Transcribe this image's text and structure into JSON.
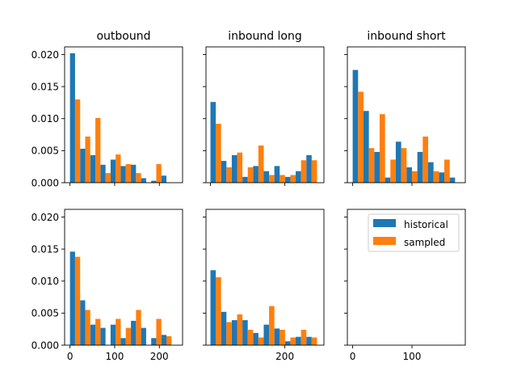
{
  "colors": {
    "historical": "#1f77b4",
    "sampled": "#ff7f0e"
  },
  "legend": {
    "placement": "upper right, bottom-right panel",
    "entries": [
      "historical",
      "sampled"
    ]
  },
  "chart_data": [
    {
      "type": "bar",
      "title": "outbound",
      "xlim": [
        -12,
        252
      ],
      "ylim": [
        0,
        0.0212
      ],
      "xticks": [
        0,
        100,
        200
      ],
      "xtick_labels_shown": false,
      "yticks": [
        0.0,
        0.005,
        0.01,
        0.015,
        0.02
      ],
      "ytick_labels": [
        "0.000",
        "0.005",
        "0.010",
        "0.015",
        "0.020"
      ],
      "ytick_labels_shown": true,
      "bin_starts": [
        0,
        22.7,
        45.5,
        68.2,
        90.9,
        113.6,
        136.4,
        159.1,
        181.8,
        204.5
      ],
      "bin_width": 22.7,
      "series": [
        {
          "name": "historical",
          "values": [
            0.0202,
            0.0053,
            0.0043,
            0.0028,
            0.0036,
            0.0026,
            0.0028,
            0.0007,
            0.0003,
            0.0011
          ]
        },
        {
          "name": "sampled",
          "values": [
            0.013,
            0.0072,
            0.0101,
            0.0015,
            0.0044,
            0.0029,
            0.0015,
            0.0,
            0.0029,
            0.0
          ]
        }
      ]
    },
    {
      "type": "bar",
      "title": "inbound long",
      "xlim": [
        -12,
        305
      ],
      "ylim": [
        0,
        0.0212
      ],
      "xticks": [
        0,
        200
      ],
      "xtick_labels_shown": false,
      "yticks": [
        0.0,
        0.005,
        0.01,
        0.015,
        0.02
      ],
      "ytick_labels_shown": false,
      "bin_starts": [
        0,
        28.6,
        57.3,
        85.9,
        114.6,
        143.2,
        171.8,
        200.5,
        229.1,
        257.7
      ],
      "bin_width": 28.6,
      "series": [
        {
          "name": "historical",
          "values": [
            0.0126,
            0.0034,
            0.0043,
            0.0009,
            0.0026,
            0.0018,
            0.0026,
            0.0009,
            0.0018,
            0.0043
          ]
        },
        {
          "name": "sampled",
          "values": [
            0.0092,
            0.0024,
            0.0047,
            0.0024,
            0.0058,
            0.0012,
            0.0012,
            0.0012,
            0.0035,
            0.0035
          ]
        }
      ]
    },
    {
      "type": "bar",
      "title": "inbound short",
      "xlim": [
        -9,
        190
      ],
      "ylim": [
        0,
        0.0212
      ],
      "xticks": [
        0,
        100
      ],
      "xtick_labels_shown": false,
      "yticks": [
        0.0,
        0.005,
        0.01,
        0.015,
        0.02
      ],
      "ytick_labels_shown": false,
      "bin_starts": [
        0,
        18.2,
        36.4,
        54.5,
        72.7,
        90.9,
        109.1,
        127.3,
        145.5,
        163.6
      ],
      "bin_width": 18.2,
      "series": [
        {
          "name": "historical",
          "values": [
            0.0176,
            0.0112,
            0.0048,
            0.0008,
            0.0064,
            0.0024,
            0.0048,
            0.0032,
            0.0016,
            0.0008
          ]
        },
        {
          "name": "sampled",
          "values": [
            0.0142,
            0.0054,
            0.0107,
            0.0036,
            0.0054,
            0.0018,
            0.0072,
            0.0018,
            0.0036,
            0.0
          ]
        }
      ]
    },
    {
      "type": "bar",
      "title": "",
      "xlim": [
        -12,
        252
      ],
      "ylim": [
        0,
        0.0212
      ],
      "xticks": [
        0,
        100,
        200
      ],
      "xtick_labels": [
        "0",
        "100",
        "200"
      ],
      "xtick_labels_shown": true,
      "yticks": [
        0.0,
        0.005,
        0.01,
        0.015,
        0.02
      ],
      "ytick_labels": [
        "0.000",
        "0.005",
        "0.010",
        "0.015",
        "0.020"
      ],
      "ytick_labels_shown": true,
      "bin_starts": [
        0,
        22.7,
        45.5,
        68.2,
        90.9,
        113.6,
        136.4,
        159.1,
        181.8,
        204.5
      ],
      "bin_width": 22.7,
      "series": [
        {
          "name": "historical",
          "values": [
            0.0146,
            0.007,
            0.0032,
            0.0027,
            0.0032,
            0.0011,
            0.0038,
            0.0027,
            0.0011,
            0.0016
          ]
        },
        {
          "name": "sampled",
          "values": [
            0.0138,
            0.0055,
            0.0041,
            0.0,
            0.0041,
            0.0027,
            0.0055,
            0.0,
            0.0041,
            0.0014
          ]
        }
      ]
    },
    {
      "type": "bar",
      "title": "",
      "xlim": [
        -12,
        305
      ],
      "ylim": [
        0,
        0.0212
      ],
      "xticks": [
        200
      ],
      "xtick_labels": [
        "200"
      ],
      "xtick_labels_shown": true,
      "yticks": [
        0.0,
        0.005,
        0.01,
        0.015,
        0.02
      ],
      "ytick_labels_shown": false,
      "bin_starts": [
        0,
        28.6,
        57.3,
        85.9,
        114.6,
        143.2,
        171.8,
        200.5,
        229.1,
        257.7
      ],
      "bin_width": 28.6,
      "series": [
        {
          "name": "historical",
          "values": [
            0.0117,
            0.0052,
            0.0039,
            0.0039,
            0.0019,
            0.0032,
            0.0026,
            0.0006,
            0.0013,
            0.0013
          ]
        },
        {
          "name": "sampled",
          "values": [
            0.0106,
            0.0036,
            0.0048,
            0.0024,
            0.0012,
            0.0061,
            0.0024,
            0.0012,
            0.0024,
            0.0012
          ]
        }
      ]
    },
    {
      "type": "bar",
      "title": "",
      "xlim": [
        -9,
        190
      ],
      "ylim": [
        0,
        0.0212
      ],
      "xticks": [
        0,
        100
      ],
      "xtick_labels": [
        "0",
        "100"
      ],
      "xtick_labels_shown": true,
      "yticks": [
        0.0,
        0.005,
        0.01,
        0.015,
        0.02
      ],
      "ytick_labels_shown": false,
      "bin_starts": [],
      "bin_width": 18.2,
      "series": [
        {
          "name": "historical",
          "values": []
        },
        {
          "name": "sampled",
          "values": []
        }
      ]
    }
  ]
}
